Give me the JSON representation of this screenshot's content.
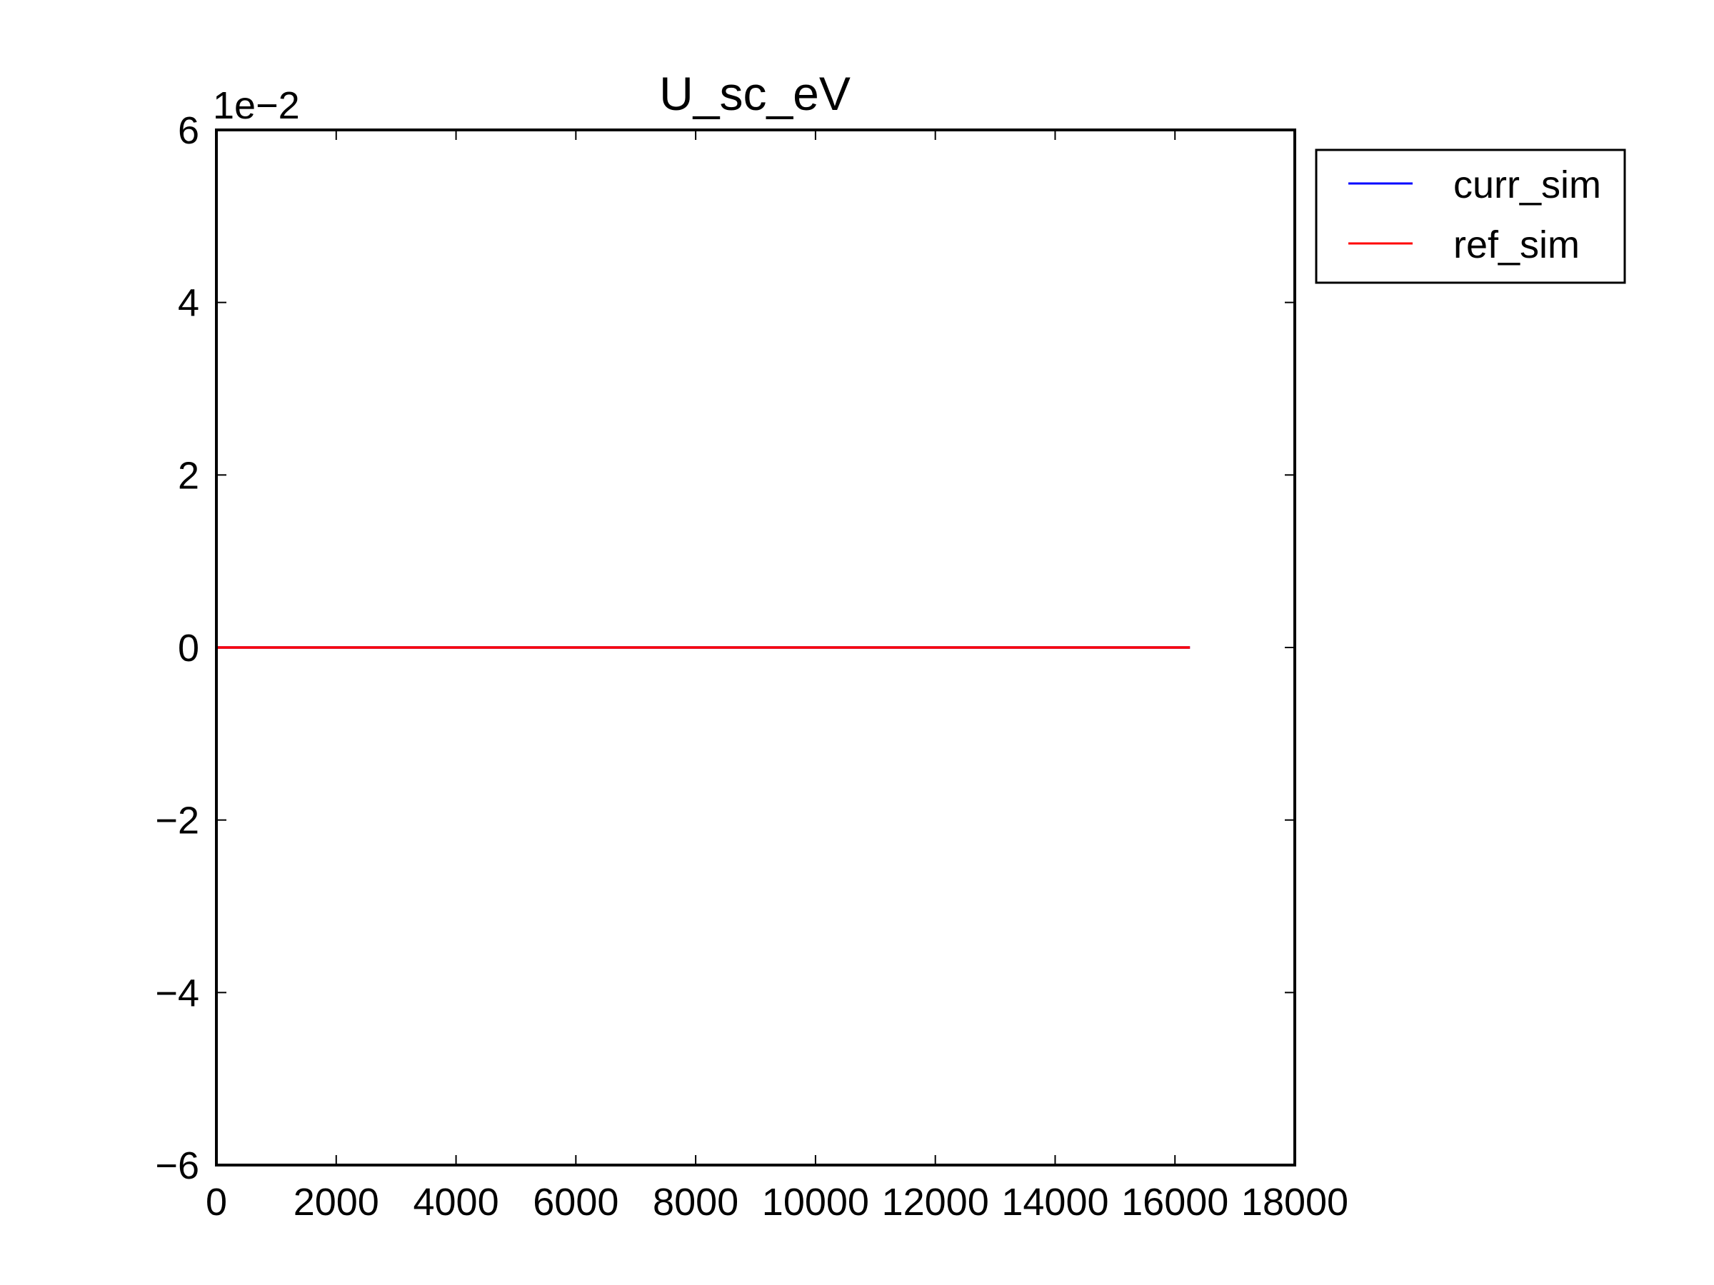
{
  "chart_data": {
    "type": "line",
    "title": "U_sc_eV",
    "xlabel": "",
    "ylabel": "",
    "y_offset_label": "1e−2",
    "xlim": [
      0,
      18000
    ],
    "ylim": [
      -0.06,
      0.06
    ],
    "x_ticks": [
      0,
      2000,
      4000,
      6000,
      8000,
      10000,
      12000,
      14000,
      16000,
      18000
    ],
    "x_tick_labels": [
      "0",
      "2000",
      "4000",
      "6000",
      "8000",
      "10000",
      "12000",
      "14000",
      "16000",
      "18000"
    ],
    "y_ticks": [
      -0.06,
      -0.04,
      -0.02,
      0,
      0.02,
      0.04,
      0.06
    ],
    "y_tick_labels": [
      "−6",
      "−4",
      "−2",
      "0",
      "2",
      "4",
      "6"
    ],
    "grid": false,
    "legend_position": "outside-top-right",
    "series": [
      {
        "name": "curr_sim",
        "color": "#0000ff",
        "x": [
          0,
          16250
        ],
        "y": [
          0,
          0
        ]
      },
      {
        "name": "ref_sim",
        "color": "#ff0000",
        "x": [
          0,
          16250
        ],
        "y": [
          0,
          0
        ]
      }
    ]
  }
}
